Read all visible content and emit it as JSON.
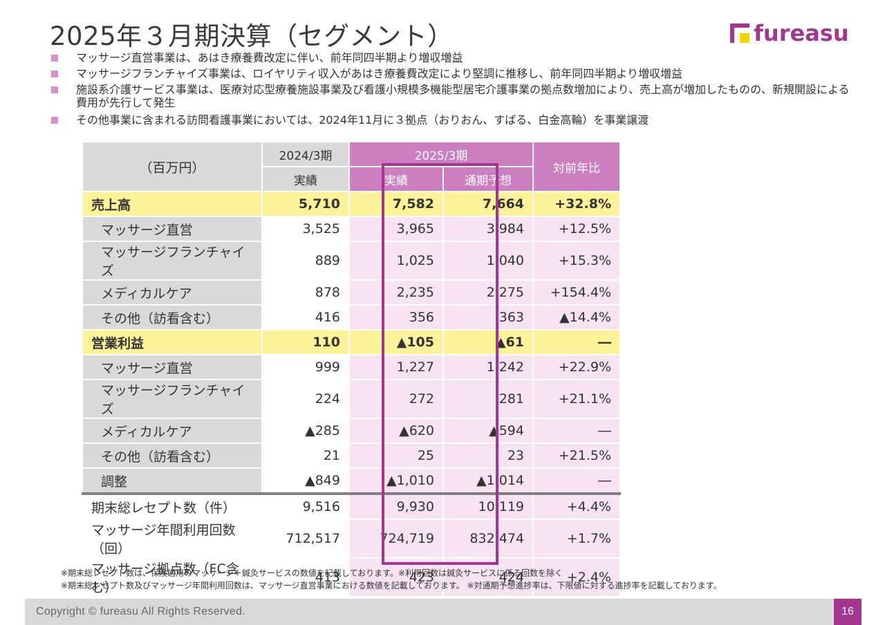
{
  "header": {
    "title": "2025年３月期決算（セグメント）",
    "logo_text": "fureasu"
  },
  "bullets": [
    "マッサージ直営事業は、あはき療養費改定に伴い、前年同四半期より増収増益",
    "マッサージフランチャイズ事業は、ロイヤリティ収入があはき療養費改定により堅調に推移し、前年同四半期より増収増益",
    "施設系介護サービス事業は、医療対応型療養施設事業及び看護小規模多機能型居宅介護事業の拠点数増加により、売上高が増加したものの、新規開設による費用が先行して発生",
    "その他事業に含まれる訪問看護事業においては、2024年11月に３拠点（おりおん、すばる、白金高輪）を事業譲渡"
  ],
  "table": {
    "unit_label": "（百万円）",
    "period_2024": "2024/3期",
    "period_2025": "2025/3期",
    "col_actual_2024": "実績",
    "col_actual_2025": "実績",
    "col_forecast": "通期予想",
    "col_yoy": "対前年比",
    "rows": [
      {
        "label": "売上高",
        "v2024": "5,710",
        "v2025": "7,582",
        "forecast": "7,664",
        "yoy": "+32.8%",
        "type": "total"
      },
      {
        "label": "マッサージ直営",
        "v2024": "3,525",
        "v2025": "3,965",
        "forecast": "3,984",
        "yoy": "+12.5%",
        "type": "sub"
      },
      {
        "label": "マッサージフランチャイズ",
        "v2024": "889",
        "v2025": "1,025",
        "forecast": "1,040",
        "yoy": "+15.3%",
        "type": "sub"
      },
      {
        "label": "メディカルケア",
        "v2024": "878",
        "v2025": "2,235",
        "forecast": "2,275",
        "yoy": "+154.4%",
        "type": "sub"
      },
      {
        "label": "その他（訪看含む）",
        "v2024": "416",
        "v2025": "356",
        "forecast": "363",
        "yoy": "▲14.4%",
        "type": "sub"
      },
      {
        "label": "営業利益",
        "v2024": "110",
        "v2025": "▲105",
        "forecast": "▲61",
        "yoy": "―",
        "type": "total"
      },
      {
        "label": "マッサージ直営",
        "v2024": "999",
        "v2025": "1,227",
        "forecast": "1,242",
        "yoy": "+22.9%",
        "type": "sub"
      },
      {
        "label": "マッサージフランチャイズ",
        "v2024": "224",
        "v2025": "272",
        "forecast": "281",
        "yoy": "+21.1%",
        "type": "sub"
      },
      {
        "label": "メディカルケア",
        "v2024": "▲285",
        "v2025": "▲620",
        "forecast": "▲594",
        "yoy": "―",
        "type": "sub"
      },
      {
        "label": "その他（訪看含む）",
        "v2024": "21",
        "v2025": "25",
        "forecast": "23",
        "yoy": "+21.5%",
        "type": "sub"
      },
      {
        "label": "調整",
        "v2024": "▲849",
        "v2025": "▲1,010",
        "forecast": "▲1,014",
        "yoy": "―",
        "type": "sub"
      },
      {
        "label": "期末総レセプト数（件）",
        "v2024": "9,516",
        "v2025": "9,930",
        "forecast": "10,119",
        "yoy": "+4.4%",
        "type": "kpi-first"
      },
      {
        "label": "マッサージ年間利用回数（回）",
        "v2024": "712,517",
        "v2025": "724,719",
        "forecast": "832,474",
        "yoy": "+1.7%",
        "type": "kpi"
      },
      {
        "label": "マッサージ拠点数（FC含む）",
        "v2024": "413",
        "v2025": "423",
        "forecast": "424",
        "yoy": "+2.4%",
        "type": "kpi"
      }
    ]
  },
  "notes": [
    "※期末総レセプト数は、保険適用のマッサージ＋鍼灸サービスの数値を記載しております。※利用回数は鍼灸サービスに係る回数を除く",
    "※期末総レセプト数及びマッサージ年間利用回数は、マッサージ直営事業における数値を記載しております。 ※対通期予想進捗率は、下限値に対する進捗率を記載しております。"
  ],
  "footer": {
    "copyright": "Copyright © fureasu All Rights Reserved.",
    "page_number": "16"
  },
  "colors": {
    "brand_purple": "#a3378f",
    "header_pink": "#cc7fc0",
    "cell_pink": "#f7e3f2",
    "total_yellow": "#fff39a",
    "label_gray": "#d9d9d9"
  }
}
